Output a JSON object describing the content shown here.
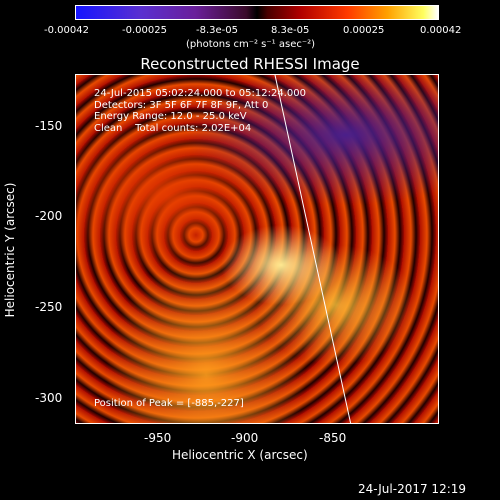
{
  "colorbar": {
    "ticks": [
      "-0.00042",
      "-0.00025",
      "-8.3e-05",
      "8.3e-05",
      "0.00025",
      "0.00042"
    ],
    "unit_label": "(photons cm⁻² s⁻¹ asec⁻²)"
  },
  "plot": {
    "title": "Reconstructed RHESSI Image",
    "xlabel": "Heliocentric X (arcsec)",
    "ylabel": "Heliocentric Y (arcsec)",
    "xticks": [
      "-950",
      "-900",
      "-850"
    ],
    "yticks": [
      "-150",
      "-200",
      "-250",
      "-300"
    ],
    "info_lines": [
      "24-Jul-2015 05:02:24.000 to 05:12:24.000",
      "Detectors: 3F 5F 6F 7F 8F 9F, Att 0",
      "Energy Range: 12.0 - 25.0 keV",
      "Clean    Total counts: 2.02E+04"
    ],
    "peak_label": "Position of Peak = [-885,-227]",
    "xlim": [
      -995,
      -885
    ],
    "ylim": [
      -313,
      -133
    ]
  },
  "footer": {
    "timestamp": "24-Jul-2017 12:19"
  }
}
